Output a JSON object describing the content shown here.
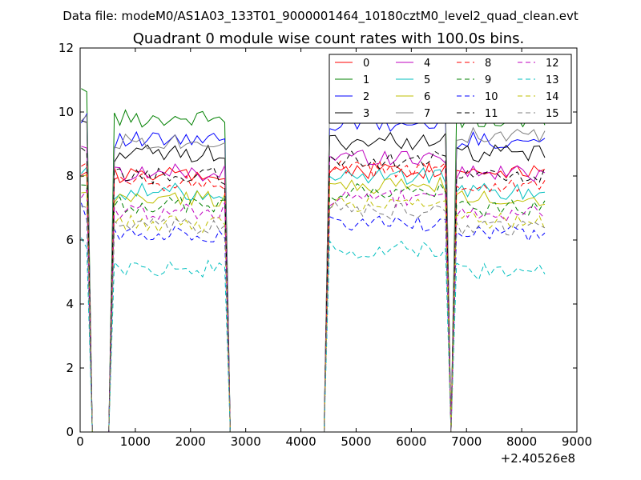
{
  "header": {
    "suptitle": "Data file: modeM0/AS1A03_133T01_9000001464_10180cztM0_level2_quad_clean.evt"
  },
  "chart_data": {
    "type": "line",
    "title": "Quadrant 0 module wise count rates with 100.0s bins.",
    "xlabel": "",
    "ylabel": "",
    "x_offset_label": "+2.40526e8",
    "xlim": [
      0,
      9000
    ],
    "ylim": [
      0,
      12
    ],
    "xticks": [
      0,
      1000,
      2000,
      3000,
      4000,
      5000,
      6000,
      7000,
      8000,
      9000
    ],
    "yticks": [
      0,
      2,
      4,
      6,
      8,
      10,
      12
    ],
    "grid": false,
    "legend_position": "top-right",
    "legend_columns": 4,
    "bin_seconds": 100,
    "segments": [
      {
        "x_start": 20,
        "x_end": 120
      },
      {
        "x_start": 620,
        "x_end": 2620
      },
      {
        "x_start": 4520,
        "x_end": 6620
      },
      {
        "x_start": 6820,
        "x_end": 8420
      }
    ],
    "series": [
      {
        "name": "0",
        "color": "#ff0000",
        "dash": "solid",
        "levels": [
          8.3,
          8.0,
          8.2,
          8.2
        ]
      },
      {
        "name": "1",
        "color": "#008000",
        "dash": "solid",
        "levels": [
          10.5,
          9.8,
          10.3,
          9.7
        ]
      },
      {
        "name": "2",
        "color": "#0000ff",
        "dash": "solid",
        "levels": [
          9.9,
          9.1,
          9.6,
          9.1
        ]
      },
      {
        "name": "3",
        "color": "#000000",
        "dash": "solid",
        "levels": [
          9.7,
          8.7,
          9.1,
          8.7
        ]
      },
      {
        "name": "4",
        "color": "#bf00bf",
        "dash": "solid",
        "levels": [
          9.0,
          8.1,
          8.6,
          8.1
        ]
      },
      {
        "name": "5",
        "color": "#00bfbf",
        "dash": "solid",
        "levels": [
          8.1,
          7.5,
          8.0,
          7.5
        ]
      },
      {
        "name": "6",
        "color": "#bfbf00",
        "dash": "solid",
        "levels": [
          7.9,
          7.3,
          7.7,
          7.3
        ]
      },
      {
        "name": "7",
        "color": "#808080",
        "dash": "solid",
        "levels": [
          9.9,
          9.1,
          10.1,
          9.3
        ]
      },
      {
        "name": "8",
        "color": "#ff0000",
        "dash": "dashed",
        "levels": [
          8.4,
          7.8,
          8.2,
          7.7
        ]
      },
      {
        "name": "9",
        "color": "#008000",
        "dash": "dashed",
        "levels": [
          7.7,
          7.1,
          7.5,
          7.0
        ]
      },
      {
        "name": "10",
        "color": "#0000ff",
        "dash": "dashed",
        "levels": [
          6.9,
          6.2,
          6.5,
          6.2
        ]
      },
      {
        "name": "11",
        "color": "#000000",
        "dash": "dashed",
        "levels": [
          8.7,
          8.0,
          8.5,
          8.0
        ]
      },
      {
        "name": "12",
        "color": "#bf00bf",
        "dash": "dashed",
        "levels": [
          7.5,
          6.9,
          7.3,
          6.8
        ]
      },
      {
        "name": "13",
        "color": "#00bfbf",
        "dash": "dashed",
        "levels": [
          5.8,
          5.1,
          5.7,
          5.0
        ]
      },
      {
        "name": "14",
        "color": "#bfbf00",
        "dash": "dashed",
        "levels": [
          7.3,
          6.5,
          7.1,
          6.6
        ]
      },
      {
        "name": "15",
        "color": "#808080",
        "dash": "dashed",
        "levels": [
          7.1,
          6.4,
          6.9,
          6.4
        ]
      }
    ]
  }
}
